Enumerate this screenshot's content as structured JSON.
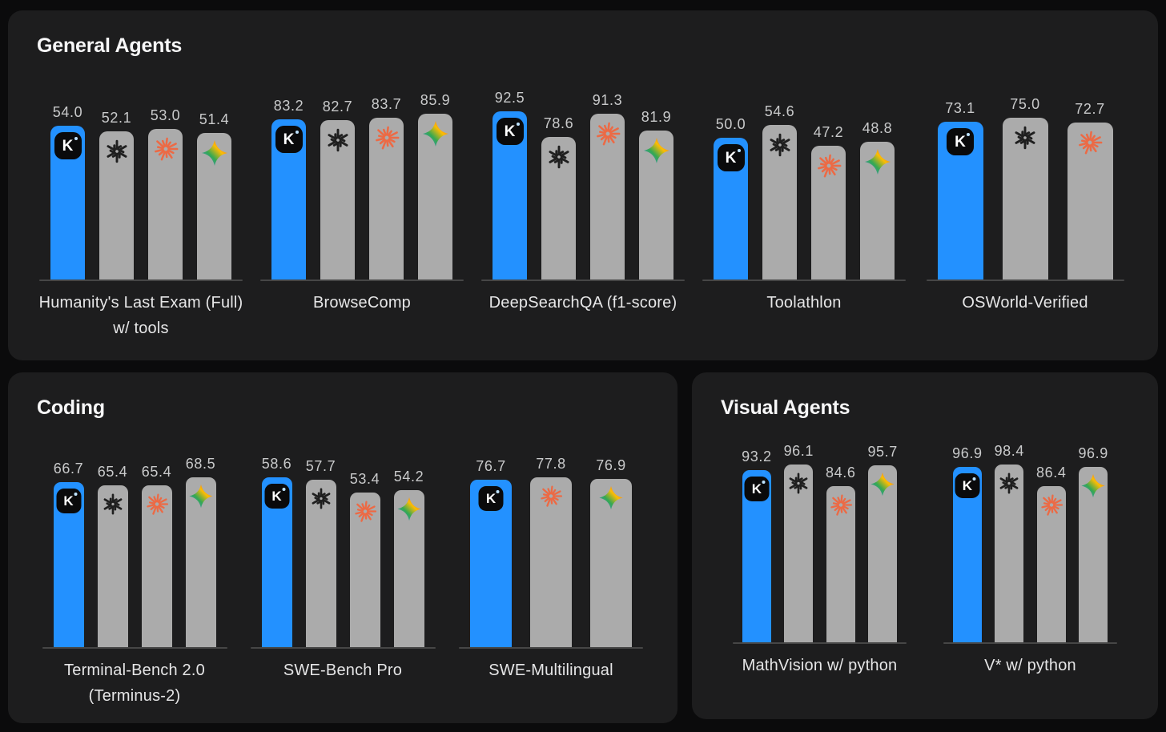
{
  "colors": {
    "page_bg": "#0B0B0C",
    "panel_bg": "#1D1D1E",
    "kimi_bar_blue": "#2391FF",
    "other_bar_gray": "#ABABAB",
    "kimi_chip_black": "#0A0A0B",
    "kimi_dot": "#BEE3FF",
    "openai_icon_dark": "#1F1F1F",
    "anthropic_icon_orange": "#EC6A45",
    "gemini_gradient": [
      "#4285F4",
      "#34A853",
      "#FBBC05",
      "#EA4335"
    ],
    "value_text": "#C9CACB",
    "label_text": "#E6E6E7",
    "axis_line": "#464646"
  },
  "panels": [
    {
      "id": "general",
      "title": "General Agents",
      "groups": [
        {
          "label_lines": [
            "Humanity's Last Exam (Full)",
            "w/ tools"
          ],
          "bars": [
            {
              "icon": "kimi-k-icon",
              "value": "54.0"
            },
            {
              "icon": "openai-icon",
              "value": "52.1"
            },
            {
              "icon": "anthropic-starburst-icon",
              "value": "53.0"
            },
            {
              "icon": "gemini-sparkle-icon",
              "value": "51.4"
            }
          ]
        },
        {
          "label_lines": [
            "BrowseComp"
          ],
          "bars": [
            {
              "icon": "kimi-k-icon",
              "value": "83.2"
            },
            {
              "icon": "openai-icon",
              "value": "82.7"
            },
            {
              "icon": "anthropic-starburst-icon",
              "value": "83.7"
            },
            {
              "icon": "gemini-sparkle-icon",
              "value": "85.9"
            }
          ]
        },
        {
          "label_lines": [
            "DeepSearchQA (f1-score)"
          ],
          "bars": [
            {
              "icon": "kimi-k-icon",
              "value": "92.5"
            },
            {
              "icon": "openai-icon",
              "value": "78.6"
            },
            {
              "icon": "anthropic-starburst-icon",
              "value": "91.3"
            },
            {
              "icon": "gemini-sparkle-icon",
              "value": "81.9"
            }
          ]
        },
        {
          "label_lines": [
            "Toolathlon"
          ],
          "bars": [
            {
              "icon": "kimi-k-icon",
              "value": "50.0"
            },
            {
              "icon": "openai-icon",
              "value": "54.6"
            },
            {
              "icon": "anthropic-starburst-icon",
              "value": "47.2"
            },
            {
              "icon": "gemini-sparkle-icon",
              "value": "48.8"
            }
          ]
        },
        {
          "label_lines": [
            "OSWorld-Verified"
          ],
          "bars": [
            {
              "icon": "kimi-k-icon",
              "value": "73.1"
            },
            {
              "icon": "openai-icon",
              "value": "75.0"
            },
            {
              "icon": "anthropic-starburst-icon",
              "value": "72.7"
            }
          ]
        }
      ]
    },
    {
      "id": "coding",
      "title": "Coding",
      "groups": [
        {
          "label_lines": [
            "Terminal-Bench 2.0",
            "(Terminus-2)"
          ],
          "bars": [
            {
              "icon": "kimi-k-icon",
              "value": "66.7"
            },
            {
              "icon": "openai-icon",
              "value": "65.4"
            },
            {
              "icon": "anthropic-starburst-icon",
              "value": "65.4"
            },
            {
              "icon": "gemini-sparkle-icon",
              "value": "68.5"
            }
          ]
        },
        {
          "label_lines": [
            "SWE-Bench Pro"
          ],
          "bars": [
            {
              "icon": "kimi-k-icon",
              "value": "58.6"
            },
            {
              "icon": "openai-icon",
              "value": "57.7"
            },
            {
              "icon": "anthropic-starburst-icon",
              "value": "53.4"
            },
            {
              "icon": "gemini-sparkle-icon",
              "value": "54.2"
            }
          ]
        },
        {
          "label_lines": [
            "SWE-Multilingual"
          ],
          "bars": [
            {
              "icon": "kimi-k-icon",
              "value": "76.7"
            },
            {
              "icon": "anthropic-starburst-icon",
              "value": "77.8"
            },
            {
              "icon": "gemini-sparkle-icon",
              "value": "76.9"
            }
          ]
        }
      ]
    },
    {
      "id": "visual",
      "title": "Visual Agents",
      "groups": [
        {
          "label_lines": [
            "MathVision w/ python"
          ],
          "bars": [
            {
              "icon": "kimi-k-icon",
              "value": "93.2"
            },
            {
              "icon": "openai-icon",
              "value": "96.1"
            },
            {
              "icon": "anthropic-starburst-icon",
              "value": "84.6"
            },
            {
              "icon": "gemini-sparkle-icon",
              "value": "95.7"
            }
          ]
        },
        {
          "label_lines": [
            "V* w/ python"
          ],
          "bars": [
            {
              "icon": "kimi-k-icon",
              "value": "96.9"
            },
            {
              "icon": "openai-icon",
              "value": "98.4"
            },
            {
              "icon": "anthropic-starburst-icon",
              "value": "86.4"
            },
            {
              "icon": "gemini-sparkle-icon",
              "value": "96.9"
            }
          ]
        }
      ]
    }
  ],
  "chart_data": [
    {
      "type": "bar",
      "title": "General Agents",
      "categories": [
        "Humanity's Last Exam (Full) w/ tools",
        "BrowseComp",
        "DeepSearchQA (f1-score)",
        "Toolathlon",
        "OSWorld-Verified"
      ],
      "series": [
        {
          "name": "Kimi",
          "icon": "kimi-k-icon",
          "color": "#2391FF",
          "values": [
            54.0,
            83.2,
            92.5,
            50.0,
            73.1
          ]
        },
        {
          "name": "OpenAI",
          "icon": "openai-icon",
          "color": "#ABABAB",
          "values": [
            52.1,
            82.7,
            78.6,
            54.6,
            75.0
          ]
        },
        {
          "name": "Anthropic",
          "icon": "anthropic-starburst-icon",
          "color": "#ABABAB",
          "values": [
            53.0,
            83.7,
            91.3,
            47.2,
            72.7
          ]
        },
        {
          "name": "Gemini",
          "icon": "gemini-sparkle-icon",
          "color": "#ABABAB",
          "values": [
            51.4,
            85.9,
            81.9,
            48.8,
            null
          ]
        }
      ],
      "value_labels": true,
      "grid": false,
      "legend": "icons-on-bars",
      "ylim": [
        0,
        100
      ]
    },
    {
      "type": "bar",
      "title": "Coding",
      "categories": [
        "Terminal-Bench 2.0 (Terminus-2)",
        "SWE-Bench Pro",
        "SWE-Multilingual"
      ],
      "series": [
        {
          "name": "Kimi",
          "icon": "kimi-k-icon",
          "color": "#2391FF",
          "values": [
            66.7,
            58.6,
            76.7
          ]
        },
        {
          "name": "OpenAI",
          "icon": "openai-icon",
          "color": "#ABABAB",
          "values": [
            65.4,
            57.7,
            null
          ]
        },
        {
          "name": "Anthropic",
          "icon": "anthropic-starburst-icon",
          "color": "#ABABAB",
          "values": [
            65.4,
            53.4,
            77.8
          ]
        },
        {
          "name": "Gemini",
          "icon": "gemini-sparkle-icon",
          "color": "#ABABAB",
          "values": [
            68.5,
            54.2,
            76.9
          ]
        }
      ],
      "value_labels": true,
      "grid": false,
      "legend": "icons-on-bars",
      "ylim": [
        0,
        100
      ]
    },
    {
      "type": "bar",
      "title": "Visual Agents",
      "categories": [
        "MathVision w/ python",
        "V* w/ python"
      ],
      "series": [
        {
          "name": "Kimi",
          "icon": "kimi-k-icon",
          "color": "#2391FF",
          "values": [
            93.2,
            96.9
          ]
        },
        {
          "name": "OpenAI",
          "icon": "openai-icon",
          "color": "#ABABAB",
          "values": [
            96.1,
            98.4
          ]
        },
        {
          "name": "Anthropic",
          "icon": "anthropic-starburst-icon",
          "color": "#ABABAB",
          "values": [
            84.6,
            86.4
          ]
        },
        {
          "name": "Gemini",
          "icon": "gemini-sparkle-icon",
          "color": "#ABABAB",
          "values": [
            95.7,
            96.9
          ]
        }
      ],
      "value_labels": true,
      "grid": false,
      "legend": "icons-on-bars",
      "ylim": [
        0,
        100
      ]
    }
  ]
}
